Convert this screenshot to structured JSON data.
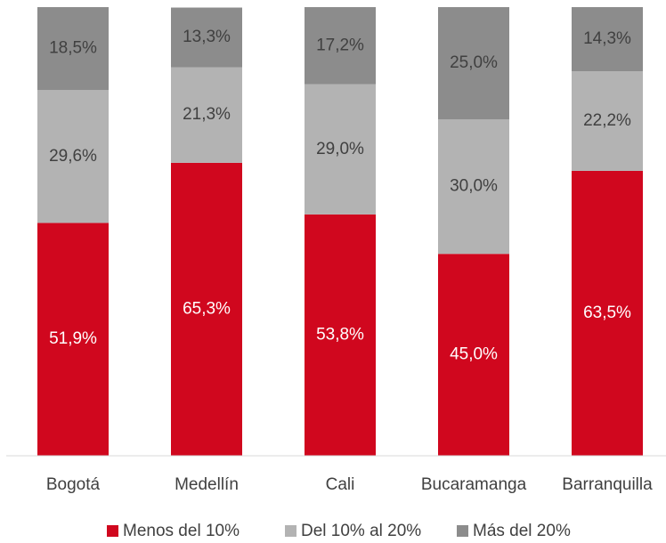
{
  "chart_data": {
    "type": "stacked_bar",
    "categories": [
      "Bogotá",
      "Medellín",
      "Cali",
      "Bucaramanga",
      "Barranquilla"
    ],
    "series": [
      {
        "name": "Menos del 10%",
        "color": "#d0071e",
        "values": [
          51.9,
          65.3,
          53.8,
          45.0,
          63.5
        ],
        "value_labels": [
          "51,9%",
          "65,3%",
          "53,8%",
          "45,0%",
          "63,5%"
        ]
      },
      {
        "name": "Del 10% al 20%",
        "color": "#b3b3b3",
        "values": [
          29.6,
          21.3,
          29.0,
          30.0,
          22.2
        ],
        "value_labels": [
          "29,6%",
          "21,3%",
          "29,0%",
          "30,0%",
          "22,2%"
        ]
      },
      {
        "name": "Más del 20%",
        "color": "#8c8c8c",
        "values": [
          18.5,
          13.3,
          17.2,
          25.0,
          14.3
        ],
        "value_labels": [
          "18,5%",
          "13,3%",
          "17,2%",
          "25,0%",
          "14,3%"
        ]
      }
    ],
    "ylim": [
      0,
      100
    ],
    "legend": "bottom"
  }
}
